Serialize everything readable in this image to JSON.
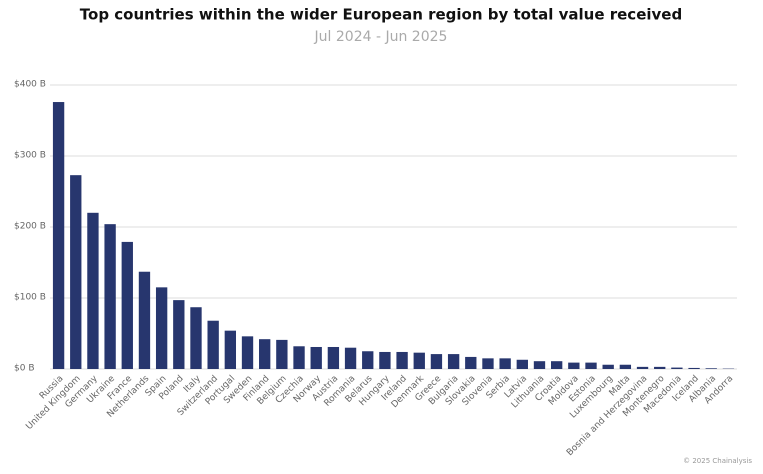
{
  "chart_data": {
    "type": "bar",
    "title": "Top countries within the wider European region by total value received",
    "subtitle": "Jul 2024 - Jun 2025",
    "credit": "© 2025 Chainalysis",
    "categories": [
      "Russia",
      "United Kingdom",
      "Germany",
      "Ukraine",
      "France",
      "Netherlands",
      "Spain",
      "Poland",
      "Italy",
      "Switzerland",
      "Portugal",
      "Sweden",
      "Finland",
      "Belgium",
      "Czechia",
      "Norway",
      "Austria",
      "Romania",
      "Belarus",
      "Hungary",
      "Ireland",
      "Denmark",
      "Greece",
      "Bulgaria",
      "Slovakia",
      "Slovenia",
      "Serbia",
      "Latvia",
      "Lithuania",
      "Croatia",
      "Moldova",
      "Estonia",
      "Luxembourg",
      "Malta",
      "Bosnia and Herzegovina",
      "Montenegro",
      "Macedonia",
      "Iceland",
      "Albania",
      "Andorra"
    ],
    "values": [
      376,
      273,
      220,
      204,
      179,
      137,
      115,
      97,
      87,
      68,
      54,
      46,
      42,
      41,
      32,
      31,
      31,
      30,
      25,
      24,
      24,
      23,
      21,
      21,
      17,
      15,
      15,
      13,
      11,
      11,
      9,
      9,
      6,
      6,
      3,
      3,
      2,
      1.5,
      1,
      0.5
    ],
    "color": "#27366e",
    "ylim": [
      0,
      400
    ],
    "yticks": [
      {
        "value": 0,
        "label": "$0 B"
      },
      {
        "value": 100,
        "label": "$100 B"
      },
      {
        "value": 200,
        "label": "$200 B"
      },
      {
        "value": 300,
        "label": "$300 B"
      },
      {
        "value": 400,
        "label": "$400 B"
      }
    ],
    "grid": true
  }
}
